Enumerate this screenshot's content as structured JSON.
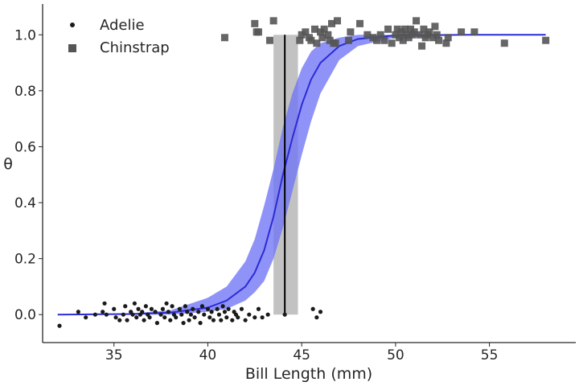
{
  "chart_data": {
    "type": "scatter",
    "title": "",
    "xlabel": "Bill Length (mm)",
    "ylabel": "θ",
    "xlim": [
      31.2,
      59.6
    ],
    "ylim": [
      -0.1,
      1.11
    ],
    "xticks": [
      35,
      40,
      45,
      50,
      55
    ],
    "yticks": [
      0.0,
      0.2,
      0.4,
      0.6,
      0.8,
      1.0
    ],
    "grid": false,
    "legend_position": "top-left",
    "series": [
      {
        "name": "Adelie",
        "marker": "circle",
        "color": "#1a1a1a",
        "points": [
          [
            32.1,
            -0.04
          ],
          [
            33.1,
            0.01
          ],
          [
            33.5,
            -0.01
          ],
          [
            34.0,
            0.0
          ],
          [
            34.4,
            0.01
          ],
          [
            34.5,
            0.04
          ],
          [
            34.6,
            0.0
          ],
          [
            35.0,
            0.02
          ],
          [
            35.1,
            -0.01
          ],
          [
            35.3,
            -0.02
          ],
          [
            35.5,
            0.0
          ],
          [
            35.6,
            0.03
          ],
          [
            35.7,
            -0.02
          ],
          [
            35.9,
            0.01
          ],
          [
            36.0,
            0.0
          ],
          [
            36.1,
            0.04
          ],
          [
            36.2,
            -0.01
          ],
          [
            36.3,
            0.02
          ],
          [
            36.4,
            0.0
          ],
          [
            36.5,
            0.01
          ],
          [
            36.6,
            -0.02
          ],
          [
            36.7,
            0.03
          ],
          [
            36.8,
            0.0
          ],
          [
            36.9,
            -0.01
          ],
          [
            37.0,
            0.02
          ],
          [
            37.2,
            0.01
          ],
          [
            37.3,
            -0.03
          ],
          [
            37.5,
            0.0
          ],
          [
            37.6,
            0.02
          ],
          [
            37.7,
            -0.01
          ],
          [
            37.8,
            0.04
          ],
          [
            37.9,
            0.01
          ],
          [
            38.0,
            -0.02
          ],
          [
            38.1,
            0.03
          ],
          [
            38.2,
            0.0
          ],
          [
            38.3,
            -0.01
          ],
          [
            38.5,
            0.02
          ],
          [
            38.6,
            0.0
          ],
          [
            38.7,
            -0.03
          ],
          [
            38.8,
            0.03
          ],
          [
            38.9,
            0.01
          ],
          [
            39.0,
            -0.02
          ],
          [
            39.1,
            0.0
          ],
          [
            39.2,
            0.02
          ],
          [
            39.3,
            -0.01
          ],
          [
            39.5,
            0.01
          ],
          [
            39.6,
            -0.03
          ],
          [
            39.7,
            0.03
          ],
          [
            39.8,
            0.0
          ],
          [
            40.0,
            0.02
          ],
          [
            40.1,
            -0.01
          ],
          [
            40.2,
            0.01
          ],
          [
            40.3,
            -0.02
          ],
          [
            40.5,
            0.02
          ],
          [
            40.6,
            0.0
          ],
          [
            40.7,
            -0.02
          ],
          [
            40.8,
            0.03
          ],
          [
            40.9,
            0.01
          ],
          [
            41.0,
            -0.01
          ],
          [
            41.1,
            0.02
          ],
          [
            41.3,
            -0.02
          ],
          [
            41.4,
            0.01
          ],
          [
            41.5,
            0.0
          ],
          [
            41.6,
            -0.01
          ],
          [
            41.8,
            0.02
          ],
          [
            42.0,
            -0.02
          ],
          [
            42.2,
            0.0
          ],
          [
            42.5,
            -0.01
          ],
          [
            42.7,
            0.02
          ],
          [
            42.9,
            -0.01
          ],
          [
            43.2,
            0.0
          ],
          [
            44.1,
            0.0
          ],
          [
            45.6,
            0.02
          ],
          [
            45.8,
            -0.01
          ],
          [
            46.0,
            0.01
          ]
        ]
      },
      {
        "name": "Chinstrap",
        "marker": "square",
        "color": "#555555",
        "points": [
          [
            40.9,
            0.99
          ],
          [
            42.5,
            1.04
          ],
          [
            42.6,
            1.01
          ],
          [
            42.7,
            1.01
          ],
          [
            43.3,
            0.98
          ],
          [
            43.5,
            1.05
          ],
          [
            44.9,
            0.98
          ],
          [
            45.0,
            1.0
          ],
          [
            45.2,
            1.01
          ],
          [
            45.4,
            0.99
          ],
          [
            45.5,
            0.98
          ],
          [
            45.7,
            1.02
          ],
          [
            45.8,
            0.97
          ],
          [
            46.0,
            1.01
          ],
          [
            46.1,
            0.99
          ],
          [
            46.2,
            1.02
          ],
          [
            46.4,
            1.0
          ],
          [
            46.5,
            0.98
          ],
          [
            46.6,
            1.04
          ],
          [
            46.7,
            0.97
          ],
          [
            46.8,
            0.97
          ],
          [
            46.9,
            1.05
          ],
          [
            47.5,
            0.98
          ],
          [
            47.6,
            1.01
          ],
          [
            48.1,
            1.04
          ],
          [
            48.5,
            1.0
          ],
          [
            48.8,
            0.99
          ],
          [
            49.0,
            0.98
          ],
          [
            49.2,
            1.0
          ],
          [
            49.4,
            0.98
          ],
          [
            49.6,
            1.02
          ],
          [
            49.8,
            0.97
          ],
          [
            50.0,
            1.0
          ],
          [
            50.1,
            1.02
          ],
          [
            50.2,
            0.99
          ],
          [
            50.3,
            1.01
          ],
          [
            50.4,
            0.98
          ],
          [
            50.5,
            1.02
          ],
          [
            50.6,
            1.0
          ],
          [
            50.7,
            0.99
          ],
          [
            50.8,
            1.02
          ],
          [
            50.9,
            1.0
          ],
          [
            51.0,
            1.01
          ],
          [
            51.1,
            1.05
          ],
          [
            51.3,
            1.0
          ],
          [
            51.4,
            0.96
          ],
          [
            51.5,
            1.02
          ],
          [
            51.6,
            0.99
          ],
          [
            51.7,
            1.0
          ],
          [
            51.8,
            1.01
          ],
          [
            52.0,
            0.99
          ],
          [
            52.1,
            1.03
          ],
          [
            52.2,
            1.0
          ],
          [
            52.3,
            0.98
          ],
          [
            52.7,
            0.97
          ],
          [
            52.8,
            0.99
          ],
          [
            53.5,
            1.01
          ],
          [
            54.2,
            1.01
          ],
          [
            55.8,
            0.97
          ],
          [
            58.0,
            0.98
          ]
        ]
      }
    ],
    "fit_curve": {
      "color": "#2b2bd6",
      "x": [
        32,
        36,
        38,
        40,
        41,
        42,
        42.5,
        43,
        43.5,
        44,
        44.5,
        45,
        45.5,
        46,
        47,
        48,
        50,
        54,
        58
      ],
      "mean": [
        0.0,
        0.002,
        0.007,
        0.025,
        0.05,
        0.1,
        0.15,
        0.23,
        0.35,
        0.5,
        0.63,
        0.75,
        0.84,
        0.9,
        0.96,
        0.985,
        0.998,
        1.0,
        1.0
      ],
      "band_color": "#6f74f5",
      "lower": [
        0.0,
        0.0,
        0.0,
        0.01,
        0.02,
        0.05,
        0.08,
        0.12,
        0.2,
        0.31,
        0.44,
        0.57,
        0.69,
        0.79,
        0.91,
        0.96,
        0.99,
        1.0,
        1.0
      ],
      "upper": [
        0.0,
        0.005,
        0.015,
        0.06,
        0.1,
        0.19,
        0.27,
        0.39,
        0.52,
        0.67,
        0.79,
        0.88,
        0.94,
        0.97,
        0.99,
        1.0,
        1.0,
        1.0,
        1.0
      ]
    },
    "boundary": {
      "line_x": 44.1,
      "band": [
        43.5,
        44.8
      ],
      "band_color": "#999999",
      "line_color": "#000000",
      "y_range": [
        0,
        1
      ]
    }
  }
}
